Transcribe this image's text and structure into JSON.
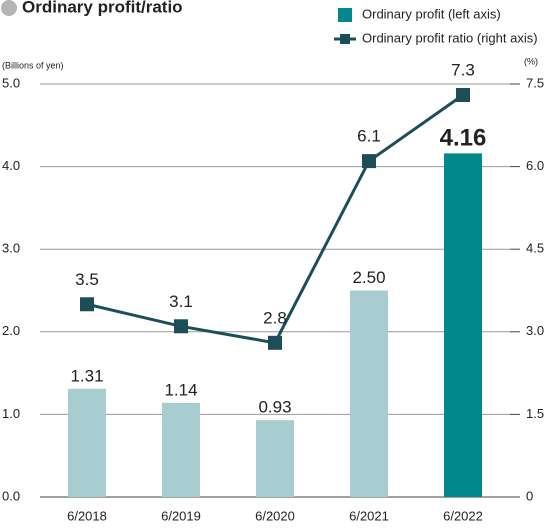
{
  "chart_data": {
    "type": "bar",
    "title": "Ordinary profit/ratio",
    "y_label": "(Billions of yen)",
    "y2_label": "(%)",
    "categories": [
      "6/2018",
      "6/2019",
      "6/2020",
      "6/2021",
      "6/2022"
    ],
    "series": [
      {
        "name": "Ordinary profit (left axis)",
        "type": "bar",
        "color": "#00888d",
        "colors": [
          "#a8cdd0",
          "#a8cdd0",
          "#a8cdd0",
          "#a8cdd0",
          "#00888d"
        ],
        "values": [
          1.31,
          1.14,
          0.93,
          2.5,
          4.16
        ],
        "value_labels": [
          "1.31",
          "1.14",
          "0.93",
          "2.50",
          "4.16"
        ]
      },
      {
        "name": "Ordinary profit ratio (right axis)",
        "type": "line",
        "axis": "y2",
        "color": "#1c4e59",
        "values": [
          3.5,
          3.1,
          2.8,
          6.1,
          7.3
        ]
      }
    ],
    "ylim": [
      0,
      5
    ],
    "yticks": [
      {
        "value": 0,
        "label": "0.0"
      },
      {
        "value": 1,
        "label": "1.0"
      },
      {
        "value": 2,
        "label": "2.0"
      },
      {
        "value": 3,
        "label": "3.0"
      },
      {
        "value": 4,
        "label": "4.0"
      },
      {
        "value": 5,
        "label": "5.0"
      }
    ],
    "y2lim": [
      0,
      7.5
    ],
    "y2ticks": [
      0,
      1.5,
      {
        "value": 3,
        "label": "3.0"
      },
      4.5,
      {
        "value": 6,
        "label": "6.0"
      },
      7.5
    ],
    "grid": true
  }
}
